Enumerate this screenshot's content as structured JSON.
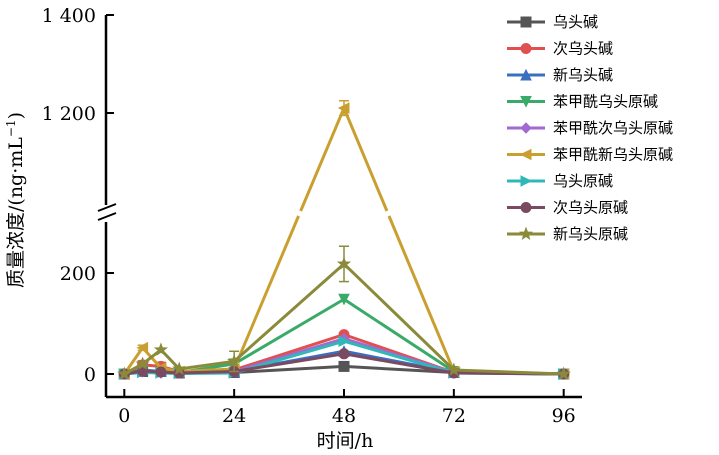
{
  "chart_data": {
    "type": "line",
    "xlabel": "时间/h",
    "ylabel": "质量浓度/(ng·mL",
    "ylabel_sup": "−1",
    "ylabel_close": ")",
    "x_ticks": [
      "0",
      "24",
      "48",
      "72",
      "96"
    ],
    "y_ticks": [
      "0",
      "200",
      "1 200",
      "1 400"
    ],
    "xlim": [
      -4,
      100
    ],
    "ylim": [
      0,
      1400
    ],
    "axis_break": [
      300,
      1000
    ],
    "grid": false,
    "legend_position": "top-right",
    "x": [
      0,
      4,
      8,
      12,
      24,
      48,
      72,
      96
    ],
    "series": [
      {
        "name": "乌头碱",
        "color": "#555555",
        "marker": "square",
        "values": [
          0,
          5,
          5,
          2,
          3,
          15,
          3,
          0
        ],
        "errors": [
          0,
          0,
          0,
          0,
          0,
          0,
          0,
          0
        ]
      },
      {
        "name": "次乌头碱",
        "color": "#e05050",
        "marker": "circle",
        "values": [
          0,
          18,
          15,
          5,
          8,
          78,
          3,
          0
        ],
        "errors": [
          0,
          8,
          8,
          0,
          0,
          0,
          0,
          0
        ]
      },
      {
        "name": "新乌头碱",
        "color": "#3a6fc0",
        "marker": "triangle-up",
        "values": [
          0,
          8,
          5,
          3,
          5,
          45,
          3,
          0
        ],
        "errors": [
          0,
          0,
          0,
          0,
          0,
          0,
          0,
          0
        ]
      },
      {
        "name": "苯甲酰乌头原碱",
        "color": "#3aaa68",
        "marker": "triangle-down",
        "values": [
          0,
          6,
          4,
          3,
          20,
          148,
          5,
          0
        ],
        "errors": [
          0,
          0,
          0,
          0,
          0,
          0,
          0,
          0
        ]
      },
      {
        "name": "苯甲酰次乌头原碱",
        "color": "#a06ad0",
        "marker": "diamond",
        "values": [
          0,
          4,
          2,
          2,
          5,
          70,
          3,
          0
        ],
        "errors": [
          0,
          0,
          0,
          0,
          0,
          0,
          0,
          0
        ]
      },
      {
        "name": "苯甲酰新乌头原碱",
        "color": "#c9a030",
        "marker": "triangle-left",
        "values": [
          0,
          52,
          12,
          5,
          10,
          1210,
          5,
          0
        ],
        "errors": [
          0,
          5,
          0,
          0,
          0,
          15,
          0,
          0
        ]
      },
      {
        "name": "乌头原碱",
        "color": "#30b8b8",
        "marker": "triangle-right",
        "values": [
          0,
          3,
          2,
          1,
          2,
          65,
          2,
          0
        ],
        "errors": [
          0,
          0,
          0,
          0,
          0,
          0,
          0,
          0
        ]
      },
      {
        "name": "次乌头原碱",
        "color": "#7a4a60",
        "marker": "circle",
        "values": [
          0,
          6,
          4,
          2,
          5,
          40,
          2,
          0
        ],
        "errors": [
          0,
          0,
          0,
          0,
          0,
          0,
          0,
          0
        ]
      },
      {
        "name": "新乌头原碱",
        "color": "#8a8a3a",
        "marker": "star",
        "values": [
          0,
          20,
          48,
          10,
          25,
          218,
          8,
          0
        ],
        "errors": [
          0,
          0,
          0,
          0,
          20,
          35,
          0,
          0
        ]
      }
    ]
  }
}
